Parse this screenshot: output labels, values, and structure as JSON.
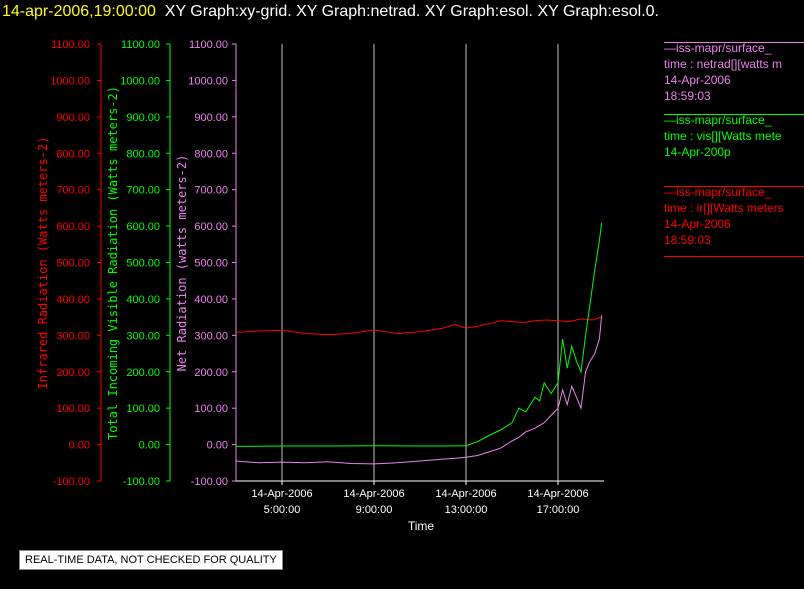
{
  "header": {
    "timestamp": "14-apr-2006,19:00:00",
    "graphs": "XY Graph:xy-grid.  XY Graph:netrad.  XY Graph:esol.  XY Graph:esol.0."
  },
  "colors": {
    "background": "#000000",
    "infrared": "#ff0000",
    "visible": "#00ff00",
    "net": "#ee82ee",
    "timestamp": "#ffff00",
    "grid": "#c0c0c0"
  },
  "legend": [
    {
      "source": "—iss-mapr/surface_",
      "variable": "time : netrad[][watts m",
      "date": "14-Apr-2006",
      "time": "18:59:03",
      "color": "#ee82ee"
    },
    {
      "source": "—iss-mapr/surface_",
      "variable": "time : vis[][Watts mete",
      "date": "14-Apr-200p",
      "time": "",
      "color": "#00ff00"
    },
    {
      "source": "—iss-mapr/surface_",
      "variable": "time : ir[][Watts meters",
      "date": "14-Apr-2006",
      "time": "18:59:03",
      "color": "#ff0000"
    }
  ],
  "disclaimer": "REAL-TIME DATA, NOT CHECKED FOR QUALITY",
  "chart_data": {
    "type": "line",
    "title": "",
    "xlabel": "Time",
    "x_ticks": [
      {
        "date": "14-Apr-2006",
        "time": "5:00:00",
        "hour": 5
      },
      {
        "date": "14-Apr-2006",
        "time": "9:00:00",
        "hour": 9
      },
      {
        "date": "14-Apr-2006",
        "time": "13:00:00",
        "hour": 13
      },
      {
        "date": "14-Apr-2006",
        "time": "17:00:00",
        "hour": 17
      }
    ],
    "xlim_hours": [
      3.0,
      19.0
    ],
    "vertical_grid": true,
    "y_ticks": [
      "1100.00",
      "1000.00",
      "900.00",
      "800.00",
      "700.00",
      "600.00",
      "500.00",
      "400.00",
      "300.00",
      "200.00",
      "100.00",
      "0.00",
      "-100.00"
    ],
    "axes": [
      {
        "label": "Infrared Radiation (Watts meters-2)",
        "color": "#ff0000",
        "ylim": [
          -100,
          1100
        ]
      },
      {
        "label": "Total Incoming Visible Radiation (Watts meters-2)",
        "color": "#00ff00",
        "ylim": [
          -100,
          1100
        ]
      },
      {
        "label": "Net Radiation (watts meters-2)",
        "color": "#ee82ee",
        "ylim": [
          -100,
          1100
        ]
      }
    ],
    "series": [
      {
        "name": "ir",
        "color": "#ff0000",
        "x": [
          3.0,
          4.0,
          5.0,
          6.0,
          7.0,
          8.0,
          9.0,
          10.0,
          11.0,
          12.0,
          12.5,
          13.0,
          13.5,
          14.0,
          14.5,
          15.0,
          15.5,
          16.0,
          16.5,
          17.0,
          17.5,
          18.0,
          18.5,
          18.9
        ],
        "y": [
          308,
          312,
          314,
          305,
          302,
          305,
          315,
          305,
          310,
          320,
          330,
          320,
          325,
          332,
          340,
          338,
          335,
          340,
          342,
          340,
          338,
          345,
          342,
          350
        ]
      },
      {
        "name": "vis",
        "color": "#00ff00",
        "x": [
          3.0,
          5.0,
          7.0,
          9.0,
          11.0,
          12.0,
          13.0,
          13.5,
          14.0,
          14.5,
          15.0,
          15.3,
          15.6,
          16.0,
          16.2,
          16.4,
          16.7,
          17.0,
          17.2,
          17.4,
          17.6,
          17.8,
          18.0,
          18.2,
          18.4,
          18.6,
          18.8,
          18.9
        ],
        "y": [
          -5,
          -4,
          -4,
          -3,
          -4,
          -4,
          -3,
          8,
          25,
          40,
          60,
          100,
          90,
          130,
          120,
          170,
          140,
          170,
          290,
          210,
          270,
          230,
          200,
          300,
          390,
          480,
          560,
          610
        ]
      },
      {
        "name": "netrad",
        "color": "#ee82ee",
        "x": [
          3.0,
          4.0,
          5.0,
          6.0,
          7.0,
          8.0,
          9.0,
          10.0,
          11.0,
          12.0,
          12.5,
          13.0,
          13.5,
          14.0,
          14.5,
          15.0,
          15.3,
          15.6,
          16.0,
          16.4,
          16.7,
          17.0,
          17.2,
          17.4,
          17.6,
          17.8,
          18.0,
          18.2,
          18.4,
          18.6,
          18.8,
          18.9
        ],
        "y": [
          -45,
          -50,
          -48,
          -50,
          -47,
          -52,
          -53,
          -50,
          -45,
          -40,
          -38,
          -35,
          -30,
          -20,
          -10,
          10,
          20,
          35,
          45,
          60,
          80,
          100,
          150,
          110,
          160,
          130,
          100,
          200,
          230,
          250,
          290,
          355
        ]
      }
    ]
  }
}
